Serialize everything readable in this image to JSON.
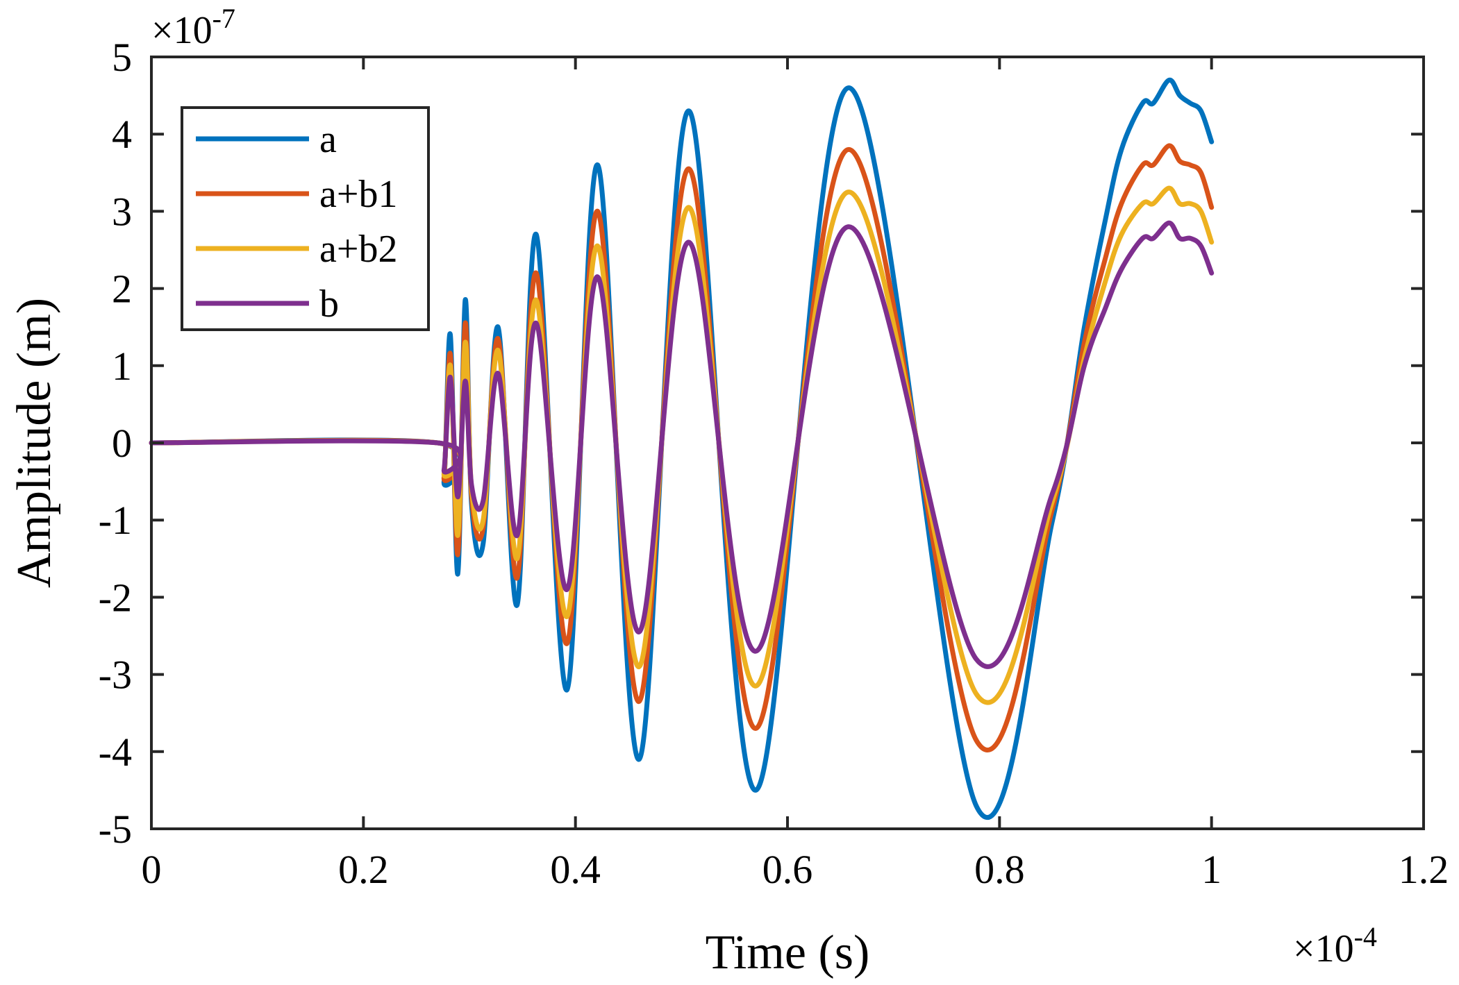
{
  "chart_data": {
    "type": "line",
    "xlabel": "Time (s)",
    "ylabel": "Amplitude (m)",
    "x_multiplier": "×10",
    "x_multiplier_exp": "-4",
    "y_multiplier": "×10",
    "y_multiplier_exp": "-7",
    "xlim": [
      0,
      1.2
    ],
    "ylim": [
      -5,
      5
    ],
    "x_scale": 0.0001,
    "y_scale": 1e-07,
    "xticks": [
      0,
      0.2,
      0.4,
      0.6,
      0.8,
      1,
      1.2
    ],
    "xtick_labels": [
      "0",
      "0.2",
      "0.4",
      "0.6",
      "0.8",
      "1",
      "1.2"
    ],
    "yticks": [
      5,
      4,
      3,
      2,
      1,
      0,
      -1,
      -2,
      -3,
      -4,
      -5
    ],
    "ytick_labels": [
      "5",
      "4",
      "3",
      "2",
      "1",
      "0",
      "-1",
      "-2",
      "-3",
      "-4",
      "-5"
    ],
    "legend_position": "top-left",
    "series": [
      {
        "name": "a",
        "color": "#0072BD",
        "x": [
          0,
          0.27,
          0.276,
          0.282,
          0.289,
          0.296,
          0.302,
          0.313,
          0.327,
          0.345,
          0.363,
          0.392,
          0.421,
          0.46,
          0.507,
          0.57,
          0.658,
          0.778,
          0.85,
          0.88,
          0.9,
          0.915,
          0.935,
          0.945,
          0.96,
          0.97,
          0.98,
          0.99,
          1.0
        ],
        "y": [
          0,
          0,
          -0.5,
          1.4,
          -1.7,
          1.85,
          -0.8,
          -1.3,
          1.5,
          -2.1,
          2.7,
          -3.2,
          3.6,
          -4.1,
          4.3,
          -4.5,
          4.6,
          -4.7,
          -1.0,
          1.5,
          2.9,
          3.8,
          4.4,
          4.4,
          4.7,
          4.5,
          4.4,
          4.3,
          3.9
        ]
      },
      {
        "name": "a+b1",
        "color": "#D95319",
        "x": [
          0,
          0.27,
          0.276,
          0.282,
          0.289,
          0.296,
          0.302,
          0.313,
          0.327,
          0.345,
          0.363,
          0.392,
          0.421,
          0.46,
          0.507,
          0.57,
          0.658,
          0.778,
          0.85,
          0.88,
          0.9,
          0.915,
          0.935,
          0.945,
          0.96,
          0.97,
          0.98,
          0.99,
          1.0
        ],
        "y": [
          0,
          0,
          -0.45,
          1.15,
          -1.45,
          1.55,
          -0.7,
          -1.1,
          1.35,
          -1.75,
          2.2,
          -2.6,
          3.0,
          -3.35,
          3.55,
          -3.7,
          3.8,
          -3.85,
          -0.85,
          1.3,
          2.4,
          3.1,
          3.6,
          3.6,
          3.85,
          3.65,
          3.6,
          3.5,
          3.05
        ]
      },
      {
        "name": "a+b2",
        "color": "#EDB120",
        "x": [
          0,
          0.27,
          0.276,
          0.282,
          0.289,
          0.296,
          0.302,
          0.313,
          0.327,
          0.345,
          0.363,
          0.392,
          0.421,
          0.46,
          0.507,
          0.57,
          0.658,
          0.778,
          0.85,
          0.88,
          0.9,
          0.915,
          0.935,
          0.945,
          0.96,
          0.97,
          0.98,
          0.99,
          1.0
        ],
        "y": [
          0,
          0,
          -0.4,
          1.0,
          -1.2,
          1.3,
          -0.6,
          -1.0,
          1.2,
          -1.5,
          1.85,
          -2.25,
          2.55,
          -2.9,
          3.05,
          -3.15,
          3.25,
          -3.25,
          -0.75,
          1.1,
          2.1,
          2.7,
          3.1,
          3.1,
          3.3,
          3.1,
          3.1,
          3.0,
          2.6
        ]
      },
      {
        "name": "b",
        "color": "#7E2F8E",
        "x": [
          0,
          0.27,
          0.276,
          0.282,
          0.289,
          0.296,
          0.302,
          0.313,
          0.327,
          0.345,
          0.363,
          0.392,
          0.421,
          0.46,
          0.507,
          0.57,
          0.658,
          0.778,
          0.85,
          0.88,
          0.9,
          0.915,
          0.935,
          0.945,
          0.96,
          0.97,
          0.98,
          0.99,
          1.0
        ],
        "y": [
          0,
          0,
          -0.35,
          0.85,
          -0.7,
          0.8,
          -0.55,
          -0.75,
          0.9,
          -1.2,
          1.55,
          -1.9,
          2.15,
          -2.45,
          2.6,
          -2.7,
          2.8,
          -2.8,
          -0.65,
          1.0,
          1.75,
          2.25,
          2.65,
          2.65,
          2.85,
          2.65,
          2.65,
          2.55,
          2.2
        ]
      }
    ]
  }
}
